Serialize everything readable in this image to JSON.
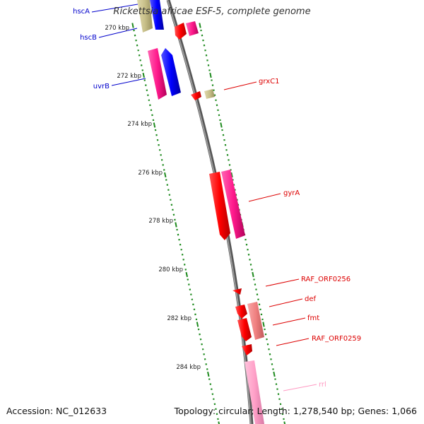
{
  "title": "Rickettsia africae ESF-5, complete genome",
  "accession": "Accession: NC_012633",
  "topology": "Topology: circular; Length: 1,278,540 bp; Genes: 1,066",
  "colors": {
    "backbone": "#7f7f7f",
    "tick": "#1e8a1e",
    "red_gene": "#ff0000",
    "pink_gene": "#ff1a8c",
    "blue_gene": "#0000ff",
    "khaki_gene": "#c8c08a",
    "salmon_gene": "#f08080",
    "lightpink_gene": "#ffa0c8"
  },
  "kbp_labels": [
    "270 kbp",
    "272 kbp",
    "274 kbp",
    "276 kbp",
    "278 kbp",
    "280 kbp",
    "282 kbp",
    "284 kbp"
  ],
  "gene_labels": {
    "left": [
      "hscA",
      "hscB",
      "uvrB"
    ],
    "right": [
      "grxC1",
      "gyrA",
      "RAF_ORF0256",
      "def",
      "fmt",
      "RAF_ORF0259",
      "rrl"
    ]
  }
}
